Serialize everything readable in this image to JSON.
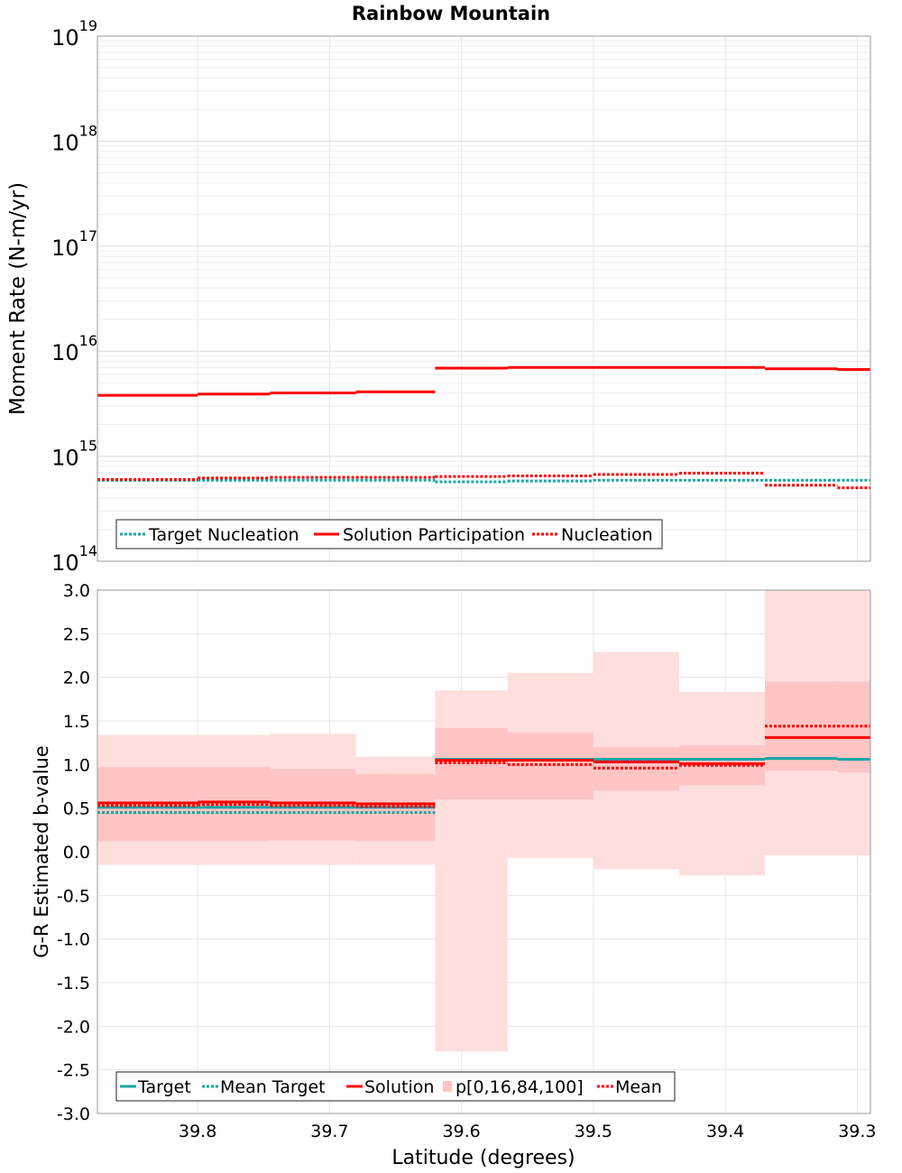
{
  "title": "Rainbow Mountain",
  "x_axis": {
    "label": "Latitude (degrees)",
    "ticks": [
      "39.8",
      "39.7",
      "39.6",
      "39.5",
      "39.4",
      "39.3"
    ]
  },
  "colors": {
    "target": "#1aa6a6",
    "red": "#ff0000",
    "band_outer": "#ffdede",
    "band_inner": "#ffc4c4",
    "grid": "#e6e6e6",
    "frame": "#888888"
  },
  "chart_data": [
    {
      "type": "line",
      "title": "Rainbow Mountain",
      "ylabel": "Moment Rate (N-m/yr)",
      "yscale": "log",
      "ylim": [
        100000000000000.0,
        1e+19
      ],
      "xlim": [
        39.876,
        39.29
      ],
      "y_ticks": [
        {
          "base": "10",
          "exp": "14"
        },
        {
          "base": "10",
          "exp": "15"
        },
        {
          "base": "10",
          "exp": "16"
        },
        {
          "base": "10",
          "exp": "17"
        },
        {
          "base": "10",
          "exp": "18"
        },
        {
          "base": "10",
          "exp": "19"
        }
      ],
      "bin_edges": [
        39.876,
        39.8,
        39.745,
        39.68,
        39.62,
        39.565,
        39.5,
        39.435,
        39.37,
        39.315,
        39.29
      ],
      "series": [
        {
          "name": "Target Nucleation",
          "style": "dotted",
          "color": "#1aa6a6",
          "values": [
            590000000000000.0,
            590000000000000.0,
            590000000000000.0,
            590000000000000.0,
            570000000000000.0,
            580000000000000.0,
            590000000000000.0,
            590000000000000.0,
            590000000000000.0,
            590000000000000.0
          ]
        },
        {
          "name": "Solution Participation",
          "style": "solid",
          "color": "#ff0000",
          "values": [
            3800000000000000.0,
            3900000000000000.0,
            4000000000000000.0,
            4100000000000000.0,
            6900000000000000.0,
            7000000000000000.0,
            7000000000000000.0,
            7000000000000000.0,
            6800000000000000.0,
            6700000000000000.0
          ]
        },
        {
          "name": "Nucleation",
          "style": "dotted",
          "color": "#ff0000",
          "values": [
            600000000000000.0,
            620000000000000.0,
            630000000000000.0,
            630000000000000.0,
            640000000000000.0,
            650000000000000.0,
            670000000000000.0,
            690000000000000.0,
            530000000000000.0,
            500000000000000.0
          ]
        }
      ],
      "legend": [
        "Target Nucleation",
        "Solution Participation",
        "Nucleation"
      ],
      "legend_position": "bottom-left"
    },
    {
      "type": "line",
      "ylabel": "G-R Estimated b-value",
      "ylim": [
        -3.0,
        3.0
      ],
      "xlim": [
        39.876,
        39.29
      ],
      "y_ticks": [
        "-3.0",
        "-2.5",
        "-2.0",
        "-1.5",
        "-1.0",
        "-0.5",
        "0.0",
        "0.5",
        "1.0",
        "1.5",
        "2.0",
        "2.5",
        "3.0"
      ],
      "bin_edges": [
        39.876,
        39.8,
        39.745,
        39.68,
        39.62,
        39.565,
        39.5,
        39.435,
        39.37,
        39.315,
        39.29
      ],
      "bands": {
        "name": "p[0,16,84,100]",
        "segments": [
          {
            "x0": 39.876,
            "x1": 39.8,
            "p0": -0.15,
            "p16": 0.12,
            "p84": 0.97,
            "p100": 1.34
          },
          {
            "x0": 39.8,
            "x1": 39.745,
            "p0": -0.15,
            "p16": 0.12,
            "p84": 0.97,
            "p100": 1.34
          },
          {
            "x0": 39.745,
            "x1": 39.68,
            "p0": -0.15,
            "p16": 0.13,
            "p84": 0.95,
            "p100": 1.35
          },
          {
            "x0": 39.68,
            "x1": 39.62,
            "p0": -0.15,
            "p16": 0.12,
            "p84": 0.89,
            "p100": 1.09
          },
          {
            "x0": 39.62,
            "x1": 39.565,
            "p0": -2.29,
            "p16": 0.6,
            "p84": 1.42,
            "p100": 1.85
          },
          {
            "x0": 39.565,
            "x1": 39.5,
            "p0": -0.07,
            "p16": 0.6,
            "p84": 1.37,
            "p100": 2.05
          },
          {
            "x0": 39.5,
            "x1": 39.435,
            "p0": -0.2,
            "p16": 0.7,
            "p84": 1.2,
            "p100": 2.29
          },
          {
            "x0": 39.435,
            "x1": 39.37,
            "p0": -0.27,
            "p16": 0.76,
            "p84": 1.22,
            "p100": 1.83
          },
          {
            "x0": 39.37,
            "x1": 39.315,
            "p0": -0.04,
            "p16": 0.93,
            "p84": 1.95,
            "p100": 3.0
          },
          {
            "x0": 39.315,
            "x1": 39.29,
            "p0": -0.04,
            "p16": 0.91,
            "p84": 1.95,
            "p100": 3.0
          }
        ]
      },
      "series": [
        {
          "name": "Target",
          "style": "solid",
          "color": "#1aa6a6",
          "values": [
            0.51,
            0.51,
            0.51,
            0.51,
            1.06,
            1.06,
            1.06,
            1.06,
            1.07,
            1.06
          ]
        },
        {
          "name": "Mean Target",
          "style": "dotted",
          "color": "#1aa6a6",
          "values": [
            0.45,
            0.45,
            0.45,
            0.45,
            1.06,
            1.06,
            1.06,
            1.06,
            1.07,
            1.06
          ]
        },
        {
          "name": "Solution",
          "style": "solid",
          "color": "#ff0000",
          "values": [
            0.56,
            0.57,
            0.56,
            0.55,
            1.05,
            1.05,
            1.03,
            1.01,
            1.31,
            1.31
          ]
        },
        {
          "name": "Mean",
          "style": "dotted",
          "color": "#ff0000",
          "values": [
            0.53,
            0.54,
            0.53,
            0.52,
            1.02,
            1.0,
            0.96,
            0.99,
            1.44,
            1.44
          ]
        }
      ],
      "legend": [
        "Target",
        "Mean Target",
        "Solution",
        "p[0,16,84,100]",
        "Mean"
      ],
      "legend_position": "bottom-left"
    }
  ]
}
